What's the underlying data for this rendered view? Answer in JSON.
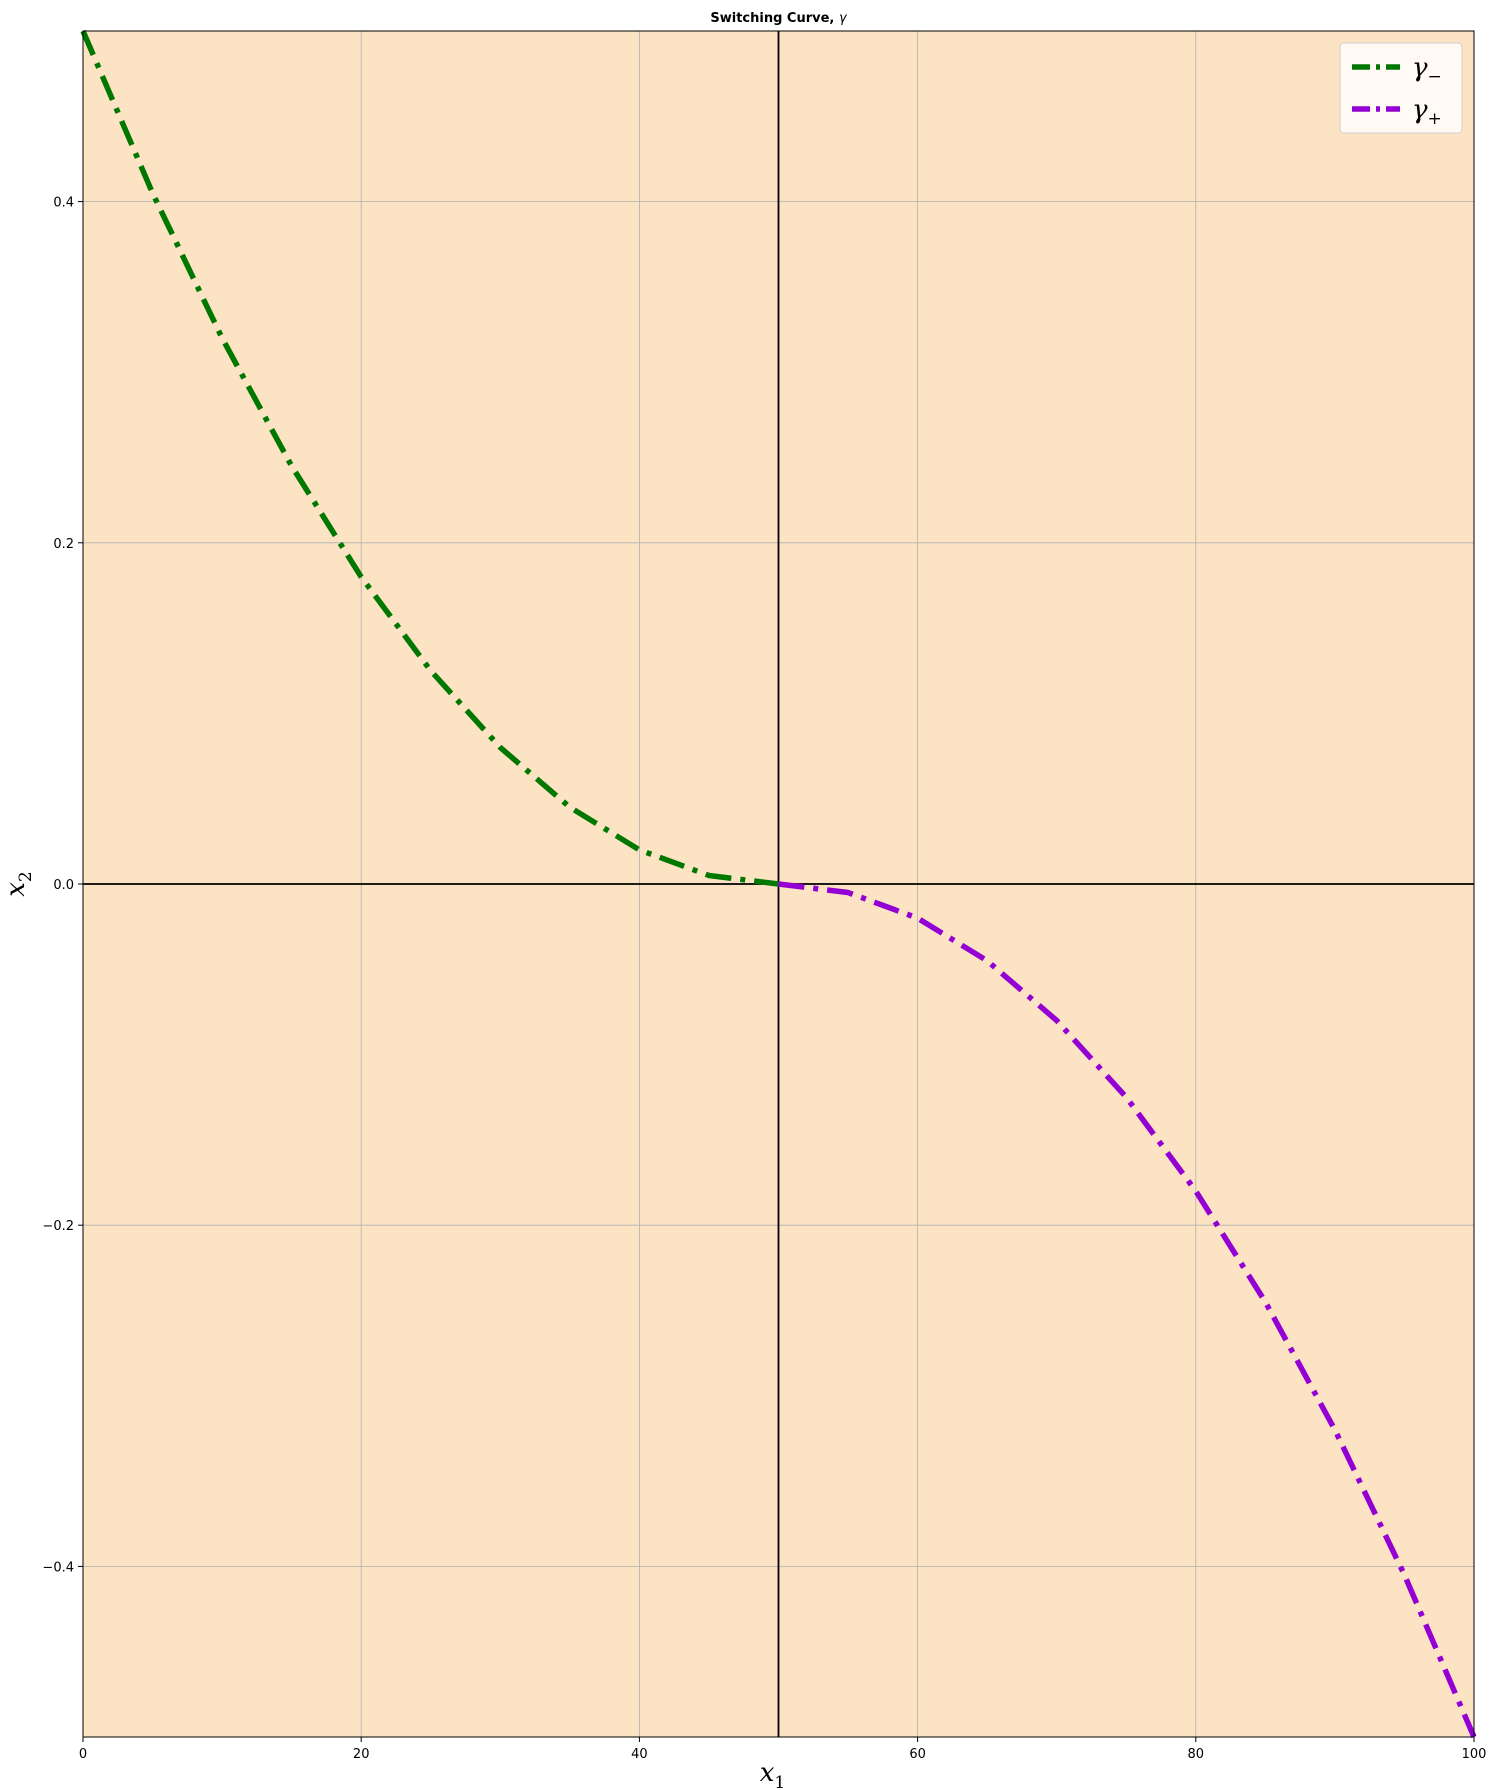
{
  "chart_data": {
    "type": "line",
    "title_main": "Switching Curve, ",
    "title_symbol": "γ",
    "xlabel": "x",
    "xlabel_sub": "1",
    "ylabel": "x",
    "ylabel_sub": "2",
    "xlim": [
      0,
      100
    ],
    "ylim": [
      -0.5,
      0.5
    ],
    "xticks": [
      0,
      20,
      40,
      60,
      80,
      100
    ],
    "yticks": [
      -0.4,
      -0.2,
      0.0,
      0.2,
      0.4
    ],
    "xtick_labels": [
      "0",
      "20",
      "40",
      "60",
      "80",
      "100"
    ],
    "ytick_labels": [
      "−0.4",
      "−0.2",
      "0.0",
      "0.2",
      "0.4"
    ],
    "grid": true,
    "legend_position": "top-right",
    "background_color": "#fce3c4",
    "reference_lines": {
      "vertical_x": 50,
      "horizontal_y": 0
    },
    "series": [
      {
        "name": "γ",
        "name_sub": "−",
        "color": "#007800",
        "linestyle": "dashdot",
        "x": [
          0,
          5,
          10,
          15,
          20,
          25,
          30,
          35,
          40,
          45,
          50
        ],
        "y": [
          0.5,
          0.405,
          0.32,
          0.245,
          0.18,
          0.125,
          0.08,
          0.045,
          0.02,
          0.005,
          0.0
        ]
      },
      {
        "name": "γ",
        "name_sub": "+",
        "color": "#9400d3",
        "linestyle": "dashdot",
        "x": [
          50,
          55,
          60,
          65,
          70,
          75,
          80,
          85,
          90,
          95,
          100
        ],
        "y": [
          0.0,
          -0.005,
          -0.02,
          -0.045,
          -0.08,
          -0.125,
          -0.18,
          -0.245,
          -0.32,
          -0.405,
          -0.5
        ]
      }
    ]
  }
}
